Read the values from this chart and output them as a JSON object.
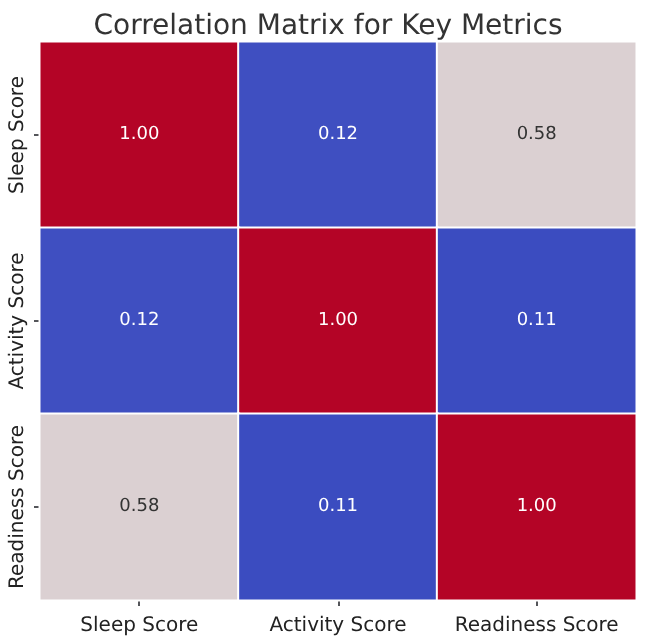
{
  "chart_data": {
    "type": "heatmap",
    "title": "Correlation Matrix for Key Metrics",
    "categories": [
      "Sleep Score",
      "Activity Score",
      "Readiness Score"
    ],
    "y_categories": [
      "Sleep Score",
      "Activity Score",
      "Readiness Score"
    ],
    "cells": [
      [
        1.0,
        0.12,
        0.58
      ],
      [
        0.12,
        1.0,
        0.11
      ],
      [
        0.58,
        0.11,
        1.0
      ]
    ],
    "cell_labels": [
      [
        "1.00",
        "0.12",
        "0.58"
      ],
      [
        "0.12",
        "1.00",
        "0.11"
      ],
      [
        "0.58",
        "0.11",
        "1.00"
      ]
    ]
  }
}
